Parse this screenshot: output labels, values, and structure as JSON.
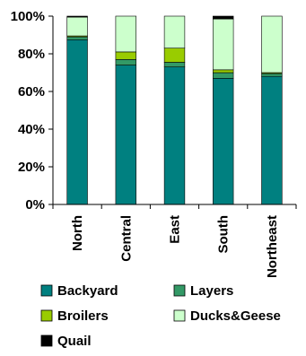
{
  "chart_data": {
    "type": "bar",
    "stacked": true,
    "categories": [
      "North",
      "Central",
      "East",
      "South",
      "Northeast"
    ],
    "series": [
      {
        "name": "Backyard",
        "values": [
          87.5,
          74,
          73,
          67,
          68
        ],
        "color": "#008080"
      },
      {
        "name": "Layers",
        "values": [
          1.5,
          3,
          2.5,
          3,
          1.5
        ],
        "color": "#339966"
      },
      {
        "name": "Broilers",
        "values": [
          0.5,
          4,
          7.5,
          1.5,
          0.5
        ],
        "color": "#99cc00"
      },
      {
        "name": "Ducks&Geese",
        "values": [
          10,
          19,
          17,
          27,
          30
        ],
        "color": "#ccffcc"
      },
      {
        "name": "Quail",
        "values": [
          0.5,
          0,
          0,
          1.5,
          0
        ],
        "color": "#000000"
      }
    ],
    "ytick_labels": [
      "0%",
      "20%",
      "40%",
      "60%",
      "80%",
      "100%"
    ],
    "ylim": [
      0,
      100
    ],
    "title": "",
    "xlabel": "",
    "ylabel": "",
    "grid": false,
    "legend_position": "bottom"
  }
}
